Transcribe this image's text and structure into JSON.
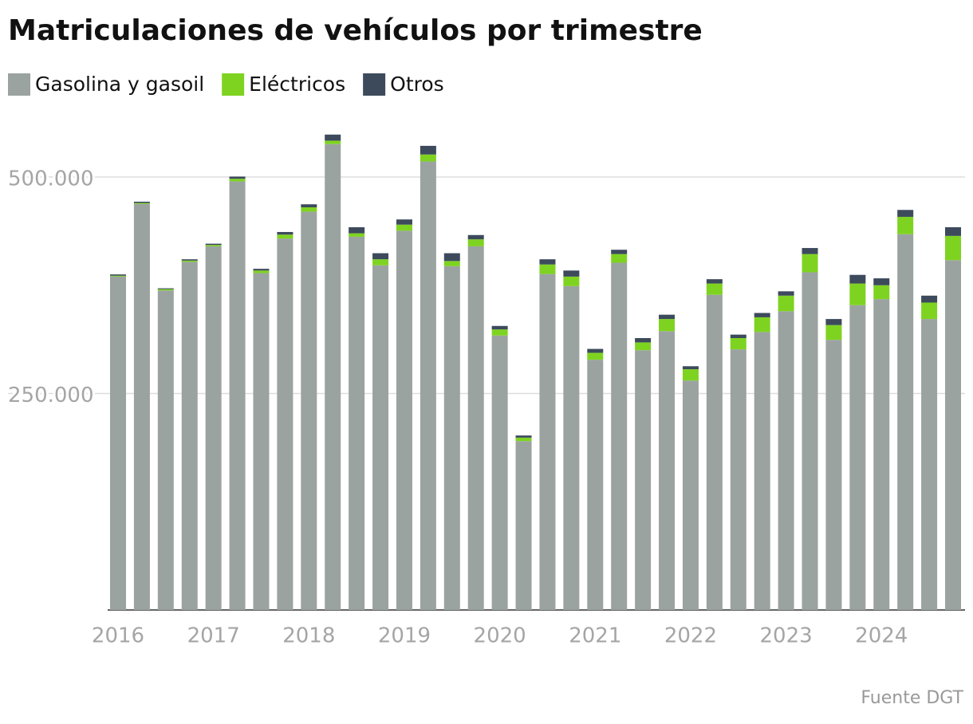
{
  "chart_data": {
    "type": "stacked-bar",
    "title": "Matriculaciones de vehículos por trimestre",
    "source": "Fuente DGT",
    "categories": [
      "2016",
      null,
      null,
      null,
      "2017",
      null,
      null,
      null,
      "2018",
      null,
      null,
      null,
      "2019",
      null,
      null,
      null,
      "2020",
      null,
      null,
      null,
      "2021",
      null,
      null,
      null,
      "2022",
      null,
      null,
      null,
      "2023",
      null,
      null,
      null,
      "2024",
      null,
      null,
      null
    ],
    "series": [
      {
        "name": "Gasolina y gasoil",
        "color": "#9ba3a0",
        "values": [
          385000,
          469000,
          369000,
          402000,
          420000,
          495000,
          389000,
          429000,
          460000,
          538000,
          431000,
          398000,
          438000,
          518000,
          397000,
          420000,
          317000,
          195000,
          388000,
          374000,
          289000,
          401000,
          300000,
          322000,
          265000,
          364000,
          301000,
          321000,
          345000,
          390000,
          312000,
          352000,
          359000,
          434000,
          336000,
          404000
        ]
      },
      {
        "name": "Eléctricos",
        "color": "#7ed321",
        "values": [
          1000,
          1000,
          1500,
          1500,
          1500,
          3000,
          3000,
          4500,
          5000,
          4000,
          4000,
          7000,
          7000,
          8000,
          6000,
          8000,
          7000,
          4000,
          11000,
          11000,
          8000,
          10000,
          9000,
          14000,
          13000,
          13000,
          13000,
          17000,
          18000,
          21000,
          17000,
          25000,
          16000,
          20000,
          19000,
          28000
        ]
      },
      {
        "name": "Otros",
        "color": "#3d4a5c",
        "values": [
          1500,
          1500,
          1000,
          1500,
          1500,
          2500,
          2000,
          3000,
          3500,
          7000,
          7000,
          7000,
          6000,
          10000,
          9000,
          5000,
          4000,
          2500,
          6000,
          7000,
          4500,
          5000,
          5000,
          5000,
          3500,
          5000,
          4000,
          5000,
          5000,
          7000,
          7000,
          10000,
          8000,
          8000,
          8000,
          10000
        ]
      }
    ],
    "ylim": [
      0,
      560000
    ],
    "yticks": [
      {
        "value": 250000,
        "label": "250.000"
      },
      {
        "value": 500000,
        "label": "500.000"
      }
    ],
    "grid": true
  }
}
